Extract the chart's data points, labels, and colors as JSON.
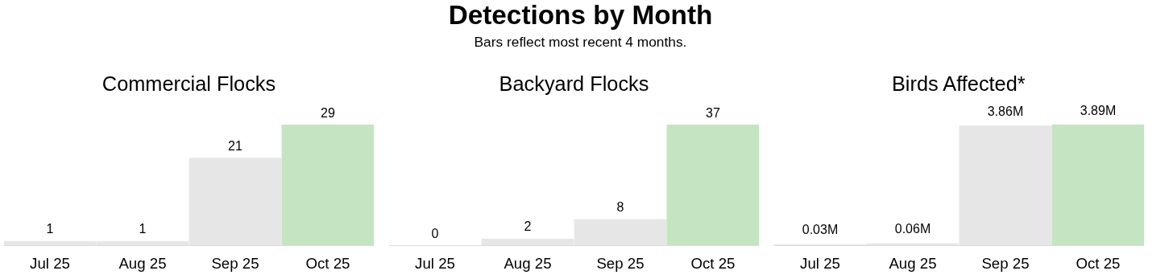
{
  "chart_data": [
    {
      "type": "other",
      "title": "Detections by Month",
      "subtitle": "Bars reflect most recent 4 months."
    },
    {
      "type": "bar",
      "title": "Commercial Flocks",
      "categories": [
        "Jul 25",
        "Aug 25",
        "Sep 25",
        "Oct 25"
      ],
      "values": [
        1,
        1,
        21,
        29
      ],
      "colors": [
        "#e6e6e6",
        "#e6e6e6",
        "#e6e6e6",
        "#c4e4c2"
      ],
      "data_labels": true,
      "grid": false
    },
    {
      "type": "bar",
      "title": "Backyard Flocks",
      "categories": [
        "Jul 25",
        "Aug 25",
        "Sep 25",
        "Oct 25"
      ],
      "values": [
        0,
        2,
        8,
        37
      ],
      "colors": [
        "#e6e6e6",
        "#e6e6e6",
        "#e6e6e6",
        "#c4e4c2"
      ],
      "data_labels": true,
      "grid": false
    },
    {
      "type": "bar",
      "title": "Birds Affected*",
      "categories": [
        "Jul 25",
        "Aug 25",
        "Sep 25",
        "Oct 25"
      ],
      "values": [
        0.03,
        0.06,
        3.86,
        3.89
      ],
      "value_labels": [
        "0.03M",
        "0.06M",
        "3.86M",
        "3.89M"
      ],
      "colors": [
        "#e6e6e6",
        "#e6e6e6",
        "#e6e6e6",
        "#c4e4c2"
      ],
      "grid": false
    }
  ]
}
